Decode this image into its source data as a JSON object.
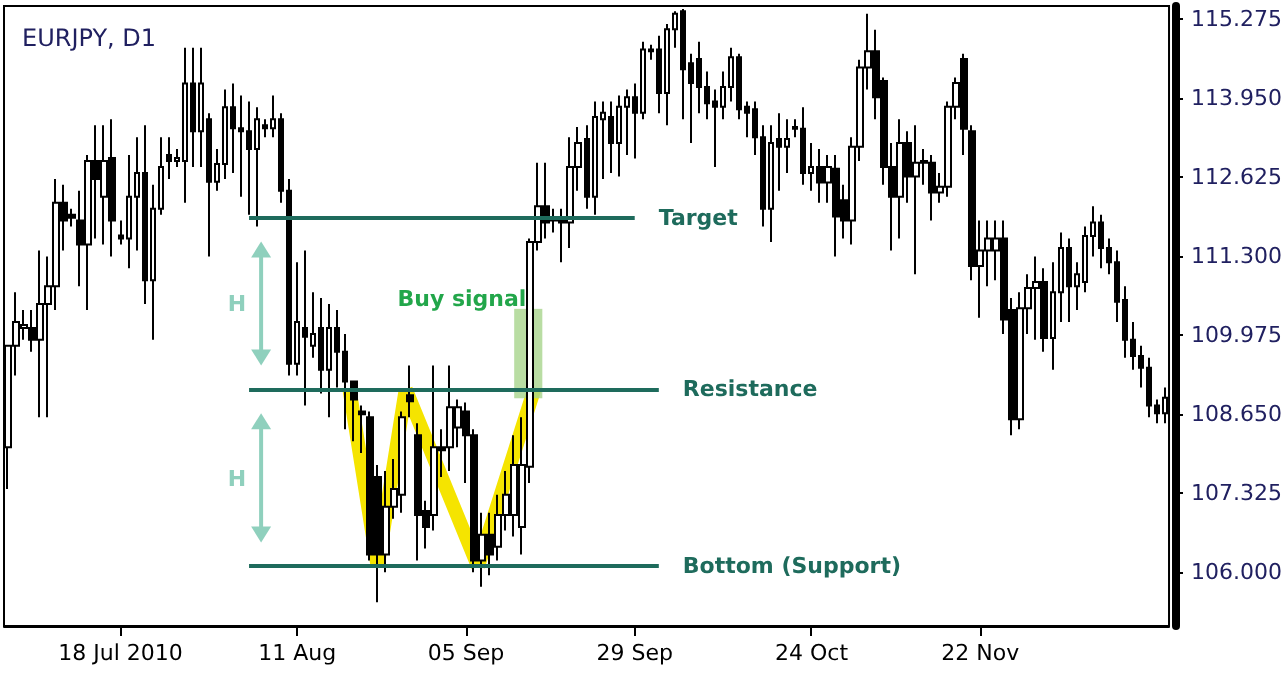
{
  "chart_data": {
    "type": "candlestick",
    "title": "EURJPY, D1",
    "categories": [
      null,
      null,
      null,
      null,
      null,
      null,
      null,
      null,
      null,
      null,
      null,
      null,
      null,
      null,
      "18 Jul 2010",
      null,
      null,
      null,
      null,
      null,
      null,
      null,
      null,
      null,
      null,
      null,
      null,
      null,
      null,
      null,
      null,
      null,
      null,
      null,
      null,
      null,
      "11 Aug",
      null,
      null,
      null,
      null,
      null,
      null,
      null,
      null,
      null,
      null,
      null,
      null,
      null,
      null,
      null,
      null,
      null,
      null,
      null,
      null,
      "05 Sep",
      null,
      null,
      null,
      null,
      null,
      null,
      null,
      null,
      null,
      null,
      null,
      null,
      null,
      null,
      null,
      null,
      null,
      null,
      null,
      null,
      "29 Sep",
      null,
      null,
      null,
      null,
      null,
      null,
      null,
      null,
      null,
      null,
      null,
      null,
      null,
      null,
      null,
      null,
      null,
      null,
      null,
      null,
      null,
      "24 Oct",
      null,
      null,
      null,
      null,
      null,
      null,
      null,
      null,
      null,
      null,
      null,
      null,
      null,
      null,
      null,
      null,
      null,
      null,
      null,
      null,
      "22 Nov",
      null,
      null,
      null,
      null,
      null,
      null,
      null,
      null,
      null,
      null,
      null,
      null,
      null,
      null,
      null,
      null,
      null,
      null,
      null,
      null,
      null,
      null,
      null
    ],
    "ohlc": [
      [
        108.1,
        109.8,
        107.4,
        109.8
      ],
      [
        109.8,
        110.7,
        109.3,
        110.2
      ],
      [
        110.1,
        110.4,
        109.9,
        110.15
      ],
      [
        110.1,
        110.4,
        109.7,
        109.9
      ],
      [
        109.9,
        111.4,
        108.6,
        110.5
      ],
      [
        110.5,
        111.3,
        108.6,
        110.8
      ],
      [
        110.8,
        112.6,
        110.4,
        112.2
      ],
      [
        112.2,
        112.5,
        111.4,
        111.9
      ],
      [
        112.0,
        112.1,
        111.8,
        111.95
      ],
      [
        111.9,
        112.4,
        110.8,
        111.5
      ],
      [
        111.5,
        113.0,
        110.4,
        112.9
      ],
      [
        112.9,
        113.5,
        111.6,
        112.6
      ],
      [
        112.3,
        113.5,
        111.5,
        112.9
      ],
      [
        112.95,
        113.6,
        111.3,
        111.9
      ],
      [
        111.65,
        111.9,
        111.5,
        111.6
      ],
      [
        111.6,
        113.0,
        111.1,
        112.3
      ],
      [
        112.3,
        113.3,
        111.4,
        112.7
      ],
      [
        112.7,
        113.5,
        110.5,
        110.9
      ],
      [
        110.9,
        112.5,
        109.9,
        112.1
      ],
      [
        112.1,
        113.3,
        112.0,
        112.8
      ],
      [
        113.0,
        113.3,
        112.6,
        112.9
      ],
      [
        112.9,
        113.1,
        112.8,
        112.95
      ],
      [
        112.9,
        114.8,
        112.2,
        114.2
      ],
      [
        114.2,
        114.8,
        112.8,
        113.4
      ],
      [
        113.4,
        114.8,
        112.8,
        114.2
      ],
      [
        113.6,
        113.7,
        111.3,
        112.55
      ],
      [
        112.55,
        113.1,
        112.4,
        112.85
      ],
      [
        112.85,
        114.1,
        112.6,
        113.8
      ],
      [
        113.8,
        114.2,
        112.7,
        113.45
      ],
      [
        113.45,
        114.0,
        112.3,
        113.4
      ],
      [
        113.4,
        113.9,
        112.0,
        113.1
      ],
      [
        113.1,
        113.8,
        111.8,
        113.6
      ],
      [
        113.5,
        113.6,
        113.3,
        113.45
      ],
      [
        113.45,
        114.0,
        113.3,
        113.6
      ],
      [
        113.6,
        113.7,
        112.2,
        112.4
      ],
      [
        112.4,
        112.6,
        109.3,
        109.5
      ],
      [
        109.5,
        111.2,
        109.3,
        110.2
      ],
      [
        110.1,
        111.4,
        108.8,
        109.95
      ],
      [
        109.8,
        110.7,
        109.6,
        110.0
      ],
      [
        110.1,
        110.6,
        109.0,
        109.4
      ],
      [
        109.4,
        110.5,
        108.6,
        110.1
      ],
      [
        110.1,
        110.4,
        109.1,
        109.7
      ],
      [
        109.7,
        110.0,
        108.4,
        109.2
      ],
      [
        109.2,
        109.2,
        108.2,
        108.9
      ],
      [
        108.7,
        108.8,
        108.0,
        108.65
      ],
      [
        108.6,
        108.7,
        106.2,
        106.3
      ],
      [
        107.6,
        107.8,
        105.5,
        106.3
      ],
      [
        106.3,
        107.7,
        106.0,
        107.1
      ],
      [
        107.1,
        107.9,
        106.9,
        107.4
      ],
      [
        107.3,
        108.7,
        107.0,
        108.6
      ],
      [
        108.97,
        109.47,
        108.6,
        108.87
      ],
      [
        108.3,
        108.5,
        106.2,
        106.96
      ],
      [
        107.03,
        107.2,
        106.4,
        106.76
      ],
      [
        106.96,
        109.47,
        106.7,
        108.1
      ],
      [
        108.1,
        108.4,
        107.6,
        108.05
      ],
      [
        108.1,
        109.47,
        107.7,
        108.77
      ],
      [
        108.43,
        108.9,
        108.1,
        108.77
      ],
      [
        108.7,
        108.85,
        107.5,
        108.3
      ],
      [
        108.3,
        108.4,
        106.0,
        106.2
      ],
      [
        106.2,
        107.0,
        105.76,
        106.63
      ],
      [
        106.63,
        107.0,
        105.95,
        106.3
      ],
      [
        106.43,
        107.3,
        106.2,
        106.96
      ],
      [
        106.96,
        107.7,
        106.7,
        107.3
      ],
      [
        106.96,
        108.3,
        106.6,
        107.8
      ],
      [
        106.76,
        108.6,
        106.3,
        107.8
      ],
      [
        107.77,
        111.6,
        107.5,
        111.54
      ],
      [
        111.54,
        112.87,
        111.4,
        112.14
      ],
      [
        112.14,
        112.87,
        111.6,
        111.87
      ],
      [
        111.94,
        112.1,
        111.7,
        111.9
      ],
      [
        111.94,
        112.1,
        111.2,
        111.87
      ],
      [
        111.87,
        113.3,
        111.44,
        112.8
      ],
      [
        112.8,
        113.47,
        112.4,
        113.2
      ],
      [
        113.27,
        113.5,
        112.1,
        112.3
      ],
      [
        112.3,
        113.9,
        112.0,
        113.64
      ],
      [
        113.6,
        113.9,
        112.6,
        113.71
      ],
      [
        113.64,
        113.9,
        112.7,
        113.2
      ],
      [
        113.2,
        114.0,
        112.64,
        113.81
      ],
      [
        113.81,
        114.1,
        113.0,
        113.97
      ],
      [
        113.97,
        114.2,
        112.94,
        113.71
      ],
      [
        113.71,
        114.9,
        113.6,
        114.77
      ],
      [
        114.77,
        114.85,
        114.6,
        114.74
      ],
      [
        114.77,
        115.0,
        113.7,
        114.04
      ],
      [
        114.04,
        115.2,
        113.5,
        115.11
      ],
      [
        115.11,
        115.41,
        114.8,
        115.37
      ],
      [
        115.41,
        115.45,
        113.6,
        114.44
      ],
      [
        114.54,
        114.7,
        113.2,
        114.21
      ],
      [
        114.61,
        114.9,
        113.7,
        114.14
      ],
      [
        114.14,
        114.4,
        113.6,
        113.87
      ],
      [
        113.9,
        114.1,
        112.8,
        113.81
      ],
      [
        113.81,
        114.4,
        113.6,
        114.14
      ],
      [
        114.14,
        114.8,
        113.9,
        114.64
      ],
      [
        114.64,
        114.7,
        113.6,
        113.77
      ],
      [
        113.81,
        113.9,
        113.3,
        113.71
      ],
      [
        113.77,
        113.9,
        113.0,
        113.3
      ],
      [
        113.3,
        113.5,
        111.8,
        112.1
      ],
      [
        112.1,
        113.5,
        111.54,
        113.2
      ],
      [
        113.27,
        113.7,
        112.4,
        113.14
      ],
      [
        113.14,
        113.6,
        112.7,
        113.27
      ],
      [
        113.47,
        113.6,
        113.3,
        113.44
      ],
      [
        113.44,
        113.8,
        112.5,
        112.7
      ],
      [
        112.7,
        113.2,
        112.4,
        112.8
      ],
      [
        112.8,
        113.1,
        112.2,
        112.54
      ],
      [
        112.54,
        113.0,
        112.2,
        112.8
      ],
      [
        112.77,
        113.0,
        111.3,
        111.97
      ],
      [
        112.24,
        112.5,
        111.6,
        111.9
      ],
      [
        111.9,
        113.3,
        111.5,
        113.14
      ],
      [
        113.14,
        114.6,
        112.9,
        114.47
      ],
      [
        114.47,
        115.37,
        114.1,
        114.74
      ],
      [
        114.74,
        115.1,
        113.6,
        113.97
      ],
      [
        114.24,
        114.3,
        112.5,
        112.8
      ],
      [
        112.8,
        113.2,
        111.4,
        112.3
      ],
      [
        112.3,
        113.6,
        111.6,
        113.2
      ],
      [
        113.2,
        113.4,
        112.2,
        112.64
      ],
      [
        112.64,
        113.5,
        111.0,
        112.87
      ],
      [
        112.9,
        113.1,
        112.5,
        112.87
      ],
      [
        112.87,
        113.0,
        111.9,
        112.37
      ],
      [
        112.37,
        112.7,
        112.2,
        112.47
      ],
      [
        112.47,
        113.9,
        112.3,
        113.81
      ],
      [
        113.81,
        114.3,
        113.6,
        114.21
      ],
      [
        114.61,
        114.7,
        113.0,
        113.44
      ],
      [
        113.4,
        113.5,
        110.9,
        111.14
      ],
      [
        111.14,
        111.9,
        110.27,
        111.4
      ],
      [
        111.4,
        111.9,
        110.8,
        111.6
      ],
      [
        111.4,
        111.9,
        110.9,
        111.6
      ],
      [
        111.6,
        111.9,
        110.0,
        110.24
      ],
      [
        110.4,
        110.6,
        108.3,
        108.57
      ],
      [
        108.57,
        110.7,
        108.4,
        110.43
      ],
      [
        110.43,
        111.0,
        110.0,
        110.77
      ],
      [
        110.77,
        111.3,
        109.9,
        110.87
      ],
      [
        110.87,
        111.1,
        109.7,
        109.93
      ],
      [
        109.93,
        111.2,
        109.4,
        110.7
      ],
      [
        110.7,
        111.7,
        110.2,
        111.44
      ],
      [
        111.44,
        111.6,
        110.2,
        110.8
      ],
      [
        110.8,
        111.2,
        110.4,
        111.0
      ],
      [
        110.87,
        111.8,
        110.7,
        111.64
      ],
      [
        111.64,
        112.14,
        111.3,
        111.87
      ],
      [
        111.87,
        112.0,
        111.1,
        111.44
      ],
      [
        111.44,
        111.6,
        111.0,
        111.2
      ],
      [
        111.2,
        111.4,
        110.2,
        110.54
      ],
      [
        110.57,
        110.8,
        109.6,
        109.9
      ],
      [
        109.9,
        110.2,
        109.4,
        109.63
      ],
      [
        109.63,
        109.8,
        109.1,
        109.43
      ],
      [
        109.43,
        109.6,
        108.6,
        108.8
      ],
      [
        108.8,
        108.9,
        108.5,
        108.67
      ],
      [
        108.67,
        109.1,
        108.5,
        108.93
      ]
    ],
    "ylim": [
      105.1,
      115.5
    ],
    "yticks": [
      {
        "value": 106,
        "label": "106.000"
      },
      {
        "value": 107.325,
        "label": "107.325"
      },
      {
        "value": 108.65,
        "label": "108.650"
      },
      {
        "value": 109.975,
        "label": "109.975"
      },
      {
        "value": 111.3,
        "label": "111.300"
      },
      {
        "value": 112.625,
        "label": "112.625"
      },
      {
        "value": 113.95,
        "label": "113.950"
      },
      {
        "value": 115.275,
        "label": "115.275"
      }
    ],
    "ref_lines": [
      {
        "axis": "y",
        "value": 111.95,
        "label": "Target",
        "color": "#1e6b5c"
      },
      {
        "axis": "y",
        "value": 109.07,
        "label": "Resistance",
        "color": "#1e6b5c"
      },
      {
        "axis": "y",
        "value": 106.1,
        "label": "Bottom (Support)",
        "color": "#1e6b5c"
      }
    ],
    "annotations": [
      "Buy signal",
      "H",
      "H"
    ],
    "grid": false
  }
}
